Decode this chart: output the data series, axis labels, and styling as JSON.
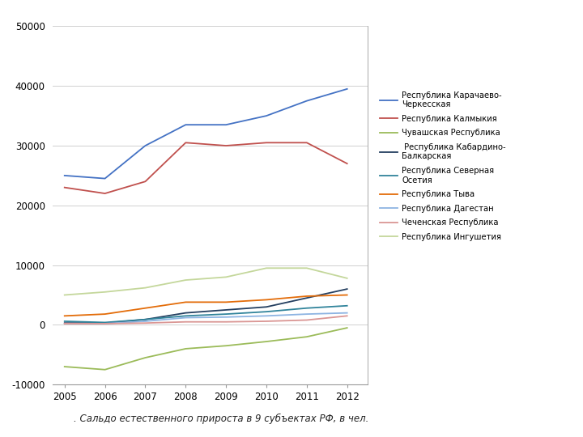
{
  "years": [
    2005,
    2006,
    2007,
    2008,
    2009,
    2010,
    2011,
    2012
  ],
  "series": [
    {
      "label": "Республика Карачаево-\nЧеркесская",
      "color": "#4472C4",
      "values": [
        25000,
        24500,
        30000,
        33500,
        33500,
        35000,
        37500,
        39500
      ]
    },
    {
      "label": "Республика Калмыкия",
      "color": "#C0504D",
      "values": [
        23000,
        22000,
        24000,
        30500,
        30000,
        30500,
        30500,
        27000
      ]
    },
    {
      "label": "Чувашская Республика",
      "color": "#9BBB59",
      "values": [
        -7000,
        -7500,
        -5500,
        -4000,
        -3500,
        -2800,
        -2000,
        -500
      ]
    },
    {
      "label": " Республика Кабардино-\nБалкарская",
      "color": "#243F60",
      "values": [
        300,
        300,
        900,
        2000,
        2500,
        3000,
        4500,
        6000
      ]
    },
    {
      "label": "Республика Северная\nОсетия",
      "color": "#31849B",
      "values": [
        600,
        400,
        900,
        1500,
        1800,
        2200,
        2800,
        3200
      ]
    },
    {
      "label": "Республика Тыва",
      "color": "#E36C09",
      "values": [
        1500,
        1800,
        2800,
        3800,
        3800,
        4200,
        4800,
        5000
      ]
    },
    {
      "label": "Республика Дагестан",
      "color": "#8DB4E2",
      "values": [
        200,
        200,
        600,
        1200,
        1300,
        1500,
        1800,
        2000
      ]
    },
    {
      "label": "Чеченская Республика",
      "color": "#DA9694",
      "values": [
        200,
        200,
        300,
        500,
        500,
        600,
        800,
        1500
      ]
    },
    {
      "label": "Республика Ингушетия",
      "color": "#C4D79B",
      "values": [
        5000,
        5500,
        6200,
        7500,
        8000,
        9500,
        9500,
        7800
      ]
    }
  ],
  "ylim": [
    -10000,
    50000
  ],
  "yticks": [
    -10000,
    0,
    10000,
    20000,
    30000,
    40000,
    50000
  ],
  "caption": ". Сальдо естественного прироста в 9 субъектах РФ, в чел.",
  "bg_color": "#FFFFFF",
  "grid_color": "#D0D0D0",
  "plot_area_right_border": "#888888"
}
